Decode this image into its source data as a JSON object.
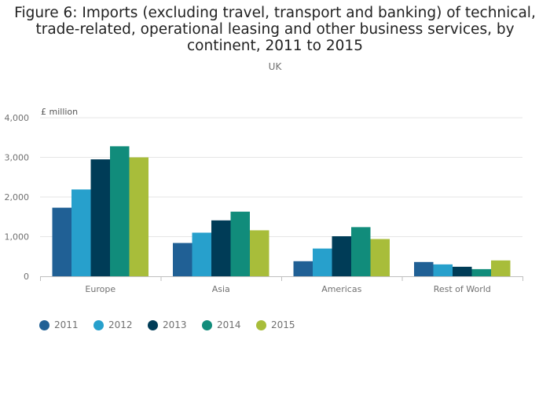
{
  "title_lines": [
    "Figure 6: Imports (excluding travel, transport and banking) of technical,",
    "trade-related, operational leasing and other business services, by",
    "continent, 2011 to 2015"
  ],
  "subtitle": "UK",
  "colors": {
    "2011": "#206095",
    "2012": "#27a0cc",
    "2013": "#003c57",
    "2014": "#118c7b",
    "2015": "#a8bd3a",
    "grid": "#e6e6e6",
    "axis": "#bfbfbf",
    "text": "#707070"
  },
  "chart_data": {
    "type": "bar",
    "title": "Figure 6: Imports (excluding travel, transport and banking) of technical, trade-related, operational leasing and other business services, by continent, 2011 to 2015",
    "subtitle": "UK",
    "ylabel": "£ million",
    "xlabel": "",
    "ylim": [
      0,
      4000
    ],
    "yticks": [
      0,
      1000,
      2000,
      3000,
      4000
    ],
    "ytick_labels": [
      "0",
      "1,000",
      "2,000",
      "3,000",
      "4,000"
    ],
    "grid": true,
    "legend_position": "bottom-left",
    "categories": [
      "Europe",
      "Asia",
      "Americas",
      "Rest of World"
    ],
    "series": [
      {
        "name": "2011",
        "values": [
          1730,
          840,
          380,
          360
        ]
      },
      {
        "name": "2012",
        "values": [
          2190,
          1100,
          700,
          300
        ]
      },
      {
        "name": "2013",
        "values": [
          2950,
          1410,
          1010,
          240
        ]
      },
      {
        "name": "2014",
        "values": [
          3280,
          1630,
          1240,
          180
        ]
      },
      {
        "name": "2015",
        "values": [
          3000,
          1160,
          940,
          400
        ]
      }
    ]
  }
}
